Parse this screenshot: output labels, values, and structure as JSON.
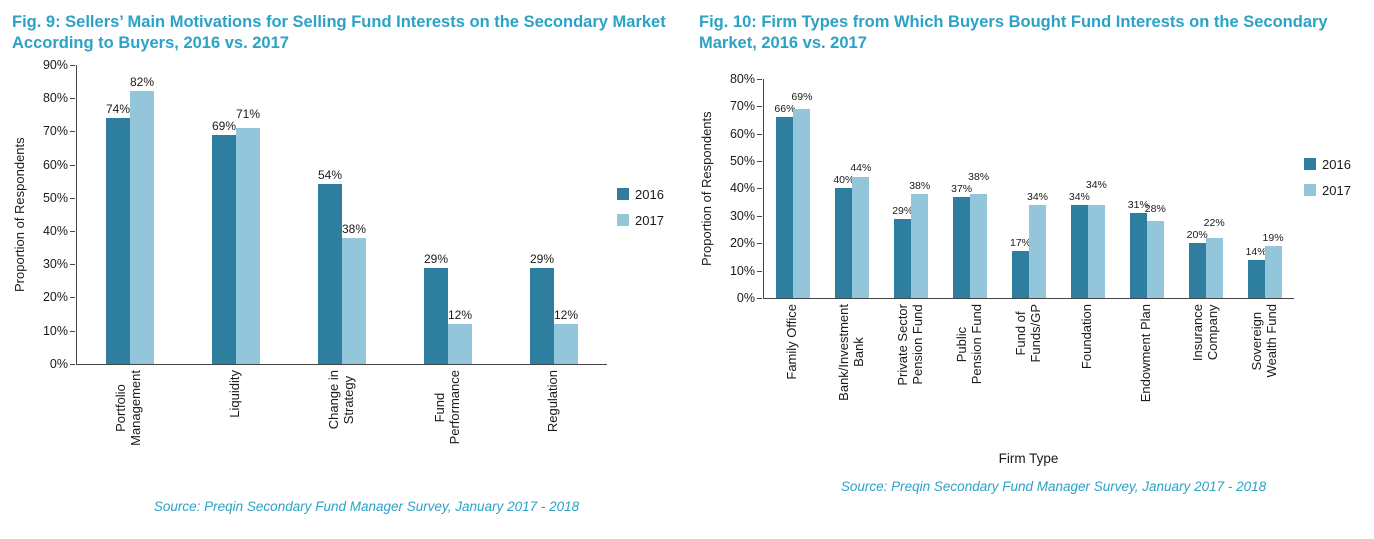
{
  "colors": {
    "accent": "#2ba2c6",
    "series_2016": "#2e7f9f",
    "series_2017": "#93c6db",
    "text": "#1a1a1a"
  },
  "chart_data": [
    {
      "type": "bar",
      "title": "Fig. 9: Sellers’ Main Motivations for Selling Fund Interests on the Secondary Market According to Buyers, 2016 vs. 2017",
      "ylabel": "Proportion of Respondents",
      "xlabel": "",
      "ylim": [
        0,
        90
      ],
      "ytick_step": 10,
      "grid": false,
      "legend_position": "right",
      "categories": [
        "Portfolio\nManagement",
        "Liquidity",
        "Change in\nStrategy",
        "Fund\nPerformance",
        "Regulation"
      ],
      "series": [
        {
          "name": "2016",
          "values": [
            74,
            69,
            54,
            29,
            29
          ]
        },
        {
          "name": "2017",
          "values": [
            82,
            71,
            38,
            12,
            12
          ]
        }
      ],
      "source": "Source: Preqin Secondary Fund Manager Survey, January 2017 - 2018"
    },
    {
      "type": "bar",
      "title": "Fig. 10: Firm Types from Which Buyers Bought Fund Interests on the Secondary Market, 2016 vs. 2017",
      "ylabel": "Proportion of Respondents",
      "xlabel": "Firm Type",
      "ylim": [
        0,
        80
      ],
      "ytick_step": 10,
      "grid": false,
      "legend_position": "right",
      "categories": [
        "Family Office",
        "Bank/Investment\nBank",
        "Private Sector\nPension Fund",
        "Public\nPension Fund",
        "Fund of\nFunds/GP",
        "Foundation",
        "Endowment Plan",
        "Insurance\nCompany",
        "Sovereign\nWealth Fund"
      ],
      "series": [
        {
          "name": "2016",
          "values": [
            66,
            40,
            29,
            37,
            17,
            34,
            31,
            20,
            14
          ]
        },
        {
          "name": "2017",
          "values": [
            69,
            44,
            38,
            38,
            34,
            34,
            28,
            22,
            19
          ]
        }
      ],
      "source": "Source: Preqin Secondary Fund Manager Survey, January 2017 - 2018"
    }
  ]
}
